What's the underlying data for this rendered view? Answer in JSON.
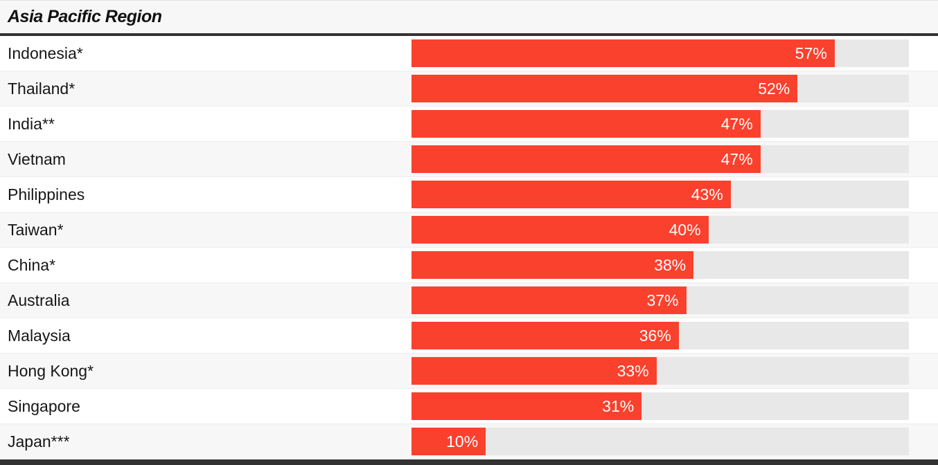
{
  "header": {
    "title": "Asia Pacific Region"
  },
  "chart_data": {
    "type": "bar",
    "orientation": "horizontal",
    "title": "Asia Pacific Region",
    "categories": [
      "Indonesia*",
      "Thailand*",
      "India**",
      "Vietnam",
      "Philippines",
      "Taiwan*",
      "China*",
      "Australia",
      "Malaysia",
      "Hong Kong*",
      "Singapore",
      "Japan***"
    ],
    "values": [
      57,
      52,
      47,
      47,
      43,
      40,
      38,
      37,
      36,
      33,
      31,
      10
    ],
    "value_suffix": "%",
    "value_labels": [
      "57%",
      "52%",
      "47%",
      "47%",
      "43%",
      "40%",
      "38%",
      "37%",
      "36%",
      "33%",
      "31%",
      "10%"
    ],
    "xlim": [
      0,
      67
    ],
    "grid": false,
    "legend": false,
    "value_label_position": "inside-end",
    "colors": {
      "bar": "#fa412d",
      "track": "#e8e8e8",
      "row_background": "#ffffff",
      "row_background_alt": "#f7f7f7",
      "header_background": "#f7f7f7",
      "rule_dark": "#333333",
      "separator": "#ededed",
      "label_text": "#161616",
      "value_text": "#ffffff"
    }
  }
}
